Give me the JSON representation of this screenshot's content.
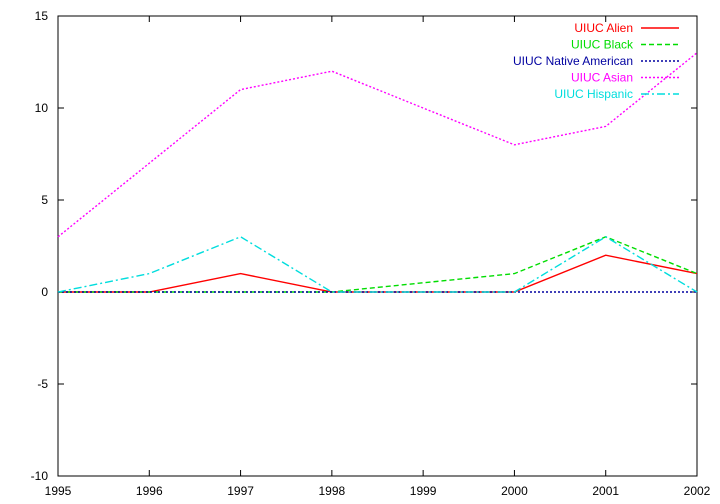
{
  "chart_data": {
    "type": "line",
    "title": "",
    "xlabel": "",
    "ylabel": "",
    "x": [
      1995,
      1996,
      1997,
      1998,
      1999,
      2000,
      2001,
      2002
    ],
    "xlim": [
      1995,
      2002
    ],
    "ylim": [
      -10,
      15
    ],
    "x_ticks": [
      "1995",
      "1996",
      "1997",
      "1998",
      "1999",
      "2000",
      "2001",
      "2002"
    ],
    "y_ticks": [
      "15",
      "10",
      "5",
      "0",
      "-5",
      "-10"
    ],
    "grid": false,
    "legend_position": "top-right",
    "series": [
      {
        "name": "UIUC Alien",
        "color": "#ff0000",
        "dash": "solid",
        "points": [
          [
            1995,
            0
          ],
          [
            1996,
            0
          ],
          [
            1997,
            1
          ],
          [
            1998,
            0
          ],
          [
            2000,
            0
          ],
          [
            2001,
            2
          ],
          [
            2002,
            1
          ]
        ]
      },
      {
        "name": "UIUC Black",
        "color": "#00dd00",
        "dash": "dashed",
        "points": [
          [
            1995,
            0
          ],
          [
            1996,
            0
          ],
          [
            1997,
            0
          ],
          [
            1998,
            0
          ],
          [
            2000,
            1
          ],
          [
            2001,
            3
          ],
          [
            2002,
            1
          ]
        ]
      },
      {
        "name": "UIUC Native American",
        "color": "#0000a0",
        "dash": "dotted",
        "points": [
          [
            1995,
            0
          ],
          [
            1996,
            0
          ],
          [
            1997,
            0
          ],
          [
            1998,
            0
          ],
          [
            2000,
            0
          ],
          [
            2001,
            0
          ],
          [
            2002,
            0
          ]
        ]
      },
      {
        "name": "UIUC Asian",
        "color": "#ff00ff",
        "dash": "dotted",
        "points": [
          [
            1995,
            3
          ],
          [
            1996,
            7
          ],
          [
            1997,
            11
          ],
          [
            1998,
            12
          ],
          [
            2000,
            8
          ],
          [
            2001,
            9
          ],
          [
            2002,
            13
          ]
        ]
      },
      {
        "name": "UIUC Hispanic",
        "color": "#00dddd",
        "dash": "dashdot",
        "points": [
          [
            1995,
            0
          ],
          [
            1996,
            1
          ],
          [
            1997,
            3
          ],
          [
            1998,
            0
          ],
          [
            2000,
            0
          ],
          [
            2001,
            3
          ],
          [
            2002,
            0
          ]
        ]
      }
    ]
  }
}
